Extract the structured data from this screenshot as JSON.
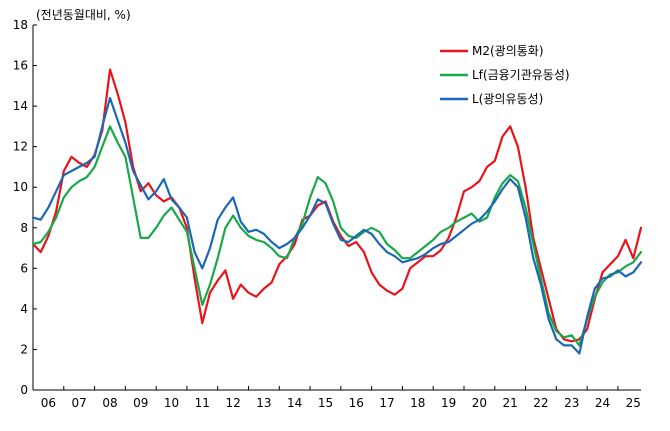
{
  "chart_data": {
    "type": "line",
    "title": "",
    "unit_label": "(전년동월대비, %)",
    "xlabel": "",
    "ylabel": "",
    "ylim": [
      0,
      18
    ],
    "yticks": [
      0,
      2,
      4,
      6,
      8,
      10,
      12,
      14,
      16,
      18
    ],
    "xlim": [
      2006.0,
      2025.75
    ],
    "xticks": [
      {
        "label": "06",
        "value": 2006.5
      },
      {
        "label": "07",
        "value": 2007.5
      },
      {
        "label": "08",
        "value": 2008.5
      },
      {
        "label": "09",
        "value": 2009.5
      },
      {
        "label": "10",
        "value": 2010.5
      },
      {
        "label": "11",
        "value": 2011.5
      },
      {
        "label": "12",
        "value": 2012.5
      },
      {
        "label": "13",
        "value": 2013.5
      },
      {
        "label": "14",
        "value": 2014.5
      },
      {
        "label": "15",
        "value": 2015.5
      },
      {
        "label": "16",
        "value": 2016.5
      },
      {
        "label": "17",
        "value": 2017.5
      },
      {
        "label": "18",
        "value": 2018.5
      },
      {
        "label": "19",
        "value": 2019.5
      },
      {
        "label": "20",
        "value": 2020.5
      },
      {
        "label": "21",
        "value": 2021.5
      },
      {
        "label": "22",
        "value": 2022.5
      },
      {
        "label": "23",
        "value": 2023.5
      },
      {
        "label": "24",
        "value": 2024.5
      },
      {
        "label": "25",
        "value": 2025.5
      }
    ],
    "legend_position": "top-right",
    "grid": false,
    "series": [
      {
        "name": "M2(광의통화)",
        "color": "#e8141c",
        "x": [
          2006.0,
          2006.25,
          2006.5,
          2006.75,
          2007.0,
          2007.25,
          2007.5,
          2007.75,
          2008.0,
          2008.25,
          2008.5,
          2008.75,
          2009.0,
          2009.25,
          2009.5,
          2009.75,
          2010.0,
          2010.25,
          2010.5,
          2010.75,
          2011.0,
          2011.25,
          2011.5,
          2011.75,
          2012.0,
          2012.25,
          2012.5,
          2012.75,
          2013.0,
          2013.25,
          2013.5,
          2013.75,
          2014.0,
          2014.25,
          2014.5,
          2014.75,
          2015.0,
          2015.25,
          2015.5,
          2015.75,
          2016.0,
          2016.25,
          2016.5,
          2016.75,
          2017.0,
          2017.25,
          2017.5,
          2017.75,
          2018.0,
          2018.25,
          2018.5,
          2018.75,
          2019.0,
          2019.25,
          2019.5,
          2019.75,
          2020.0,
          2020.25,
          2020.5,
          2020.75,
          2021.0,
          2021.25,
          2021.5,
          2021.75,
          2022.0,
          2022.25,
          2022.5,
          2022.75,
          2023.0,
          2023.25,
          2023.5,
          2023.75,
          2024.0,
          2024.25,
          2024.5,
          2024.75,
          2025.0,
          2025.25,
          2025.5,
          2025.75
        ],
        "values": [
          7.2,
          6.8,
          7.6,
          8.8,
          10.8,
          11.5,
          11.2,
          11.0,
          11.6,
          12.8,
          15.8,
          14.6,
          13.2,
          11.0,
          9.8,
          10.2,
          9.6,
          9.3,
          9.5,
          9.0,
          8.0,
          5.5,
          3.3,
          4.8,
          5.4,
          5.9,
          4.5,
          5.2,
          4.8,
          4.6,
          5.0,
          5.3,
          6.2,
          6.6,
          7.2,
          8.4,
          8.6,
          9.1,
          9.3,
          8.3,
          7.6,
          7.1,
          7.3,
          6.8,
          5.8,
          5.2,
          4.9,
          4.7,
          5.0,
          6.0,
          6.3,
          6.6,
          6.6,
          6.9,
          7.5,
          8.5,
          9.8,
          10.0,
          10.3,
          11.0,
          11.3,
          12.5,
          13.0,
          12.0,
          10.0,
          7.5,
          6.0,
          4.5,
          3.0,
          2.5,
          2.4,
          2.5,
          3.0,
          4.5,
          5.8,
          6.2,
          6.6,
          7.4,
          6.5,
          8.0
        ]
      },
      {
        "name": "Lf(금융기관유동성)",
        "color": "#1aa84a",
        "x": [
          2006.0,
          2006.25,
          2006.5,
          2006.75,
          2007.0,
          2007.25,
          2007.5,
          2007.75,
          2008.0,
          2008.25,
          2008.5,
          2008.75,
          2009.0,
          2009.25,
          2009.5,
          2009.75,
          2010.0,
          2010.25,
          2010.5,
          2010.75,
          2011.0,
          2011.25,
          2011.5,
          2011.75,
          2012.0,
          2012.25,
          2012.5,
          2012.75,
          2013.0,
          2013.25,
          2013.5,
          2013.75,
          2014.0,
          2014.25,
          2014.5,
          2014.75,
          2015.0,
          2015.25,
          2015.5,
          2015.75,
          2016.0,
          2016.25,
          2016.5,
          2016.75,
          2017.0,
          2017.25,
          2017.5,
          2017.75,
          2018.0,
          2018.25,
          2018.5,
          2018.75,
          2019.0,
          2019.25,
          2019.5,
          2019.75,
          2020.0,
          2020.25,
          2020.5,
          2020.75,
          2021.0,
          2021.25,
          2021.5,
          2021.75,
          2022.0,
          2022.25,
          2022.5,
          2022.75,
          2023.0,
          2023.25,
          2023.5,
          2023.75,
          2024.0,
          2024.25,
          2024.5,
          2024.75,
          2025.0,
          2025.25,
          2025.5,
          2025.75
        ],
        "values": [
          7.2,
          7.3,
          7.8,
          8.5,
          9.5,
          10.0,
          10.3,
          10.5,
          11.0,
          12.0,
          13.0,
          12.2,
          11.5,
          9.5,
          7.5,
          7.5,
          8.0,
          8.6,
          9.0,
          8.4,
          7.8,
          6.0,
          4.2,
          5.2,
          6.5,
          8.0,
          8.6,
          8.0,
          7.6,
          7.4,
          7.3,
          7.0,
          6.6,
          6.5,
          7.5,
          8.2,
          9.5,
          10.5,
          10.2,
          9.3,
          8.0,
          7.6,
          7.5,
          7.8,
          8.0,
          7.8,
          7.2,
          6.9,
          6.5,
          6.5,
          6.8,
          7.1,
          7.4,
          7.8,
          8.0,
          8.3,
          8.5,
          8.7,
          8.3,
          8.5,
          9.5,
          10.2,
          10.6,
          10.3,
          9.0,
          7.2,
          5.5,
          3.8,
          2.9,
          2.6,
          2.7,
          2.2,
          3.5,
          4.6,
          5.3,
          5.7,
          5.8,
          6.1,
          6.3,
          6.8
        ]
      },
      {
        "name": "L(광의유동성)",
        "color": "#1c68b4",
        "x": [
          2006.0,
          2006.25,
          2006.5,
          2006.75,
          2007.0,
          2007.25,
          2007.5,
          2007.75,
          2008.0,
          2008.25,
          2008.5,
          2008.75,
          2009.0,
          2009.25,
          2009.5,
          2009.75,
          2010.0,
          2010.25,
          2010.5,
          2010.75,
          2011.0,
          2011.25,
          2011.5,
          2011.75,
          2012.0,
          2012.25,
          2012.5,
          2012.75,
          2013.0,
          2013.25,
          2013.5,
          2013.75,
          2014.0,
          2014.25,
          2014.5,
          2014.75,
          2015.0,
          2015.25,
          2015.5,
          2015.75,
          2016.0,
          2016.25,
          2016.5,
          2016.75,
          2017.0,
          2017.25,
          2017.5,
          2017.75,
          2018.0,
          2018.25,
          2018.5,
          2018.75,
          2019.0,
          2019.25,
          2019.5,
          2019.75,
          2020.0,
          2020.25,
          2020.5,
          2020.75,
          2021.0,
          2021.25,
          2021.5,
          2021.75,
          2022.0,
          2022.25,
          2022.5,
          2022.75,
          2023.0,
          2023.25,
          2023.5,
          2023.75,
          2024.0,
          2024.25,
          2024.5,
          2024.75,
          2025.0,
          2025.25,
          2025.5,
          2025.75
        ],
        "values": [
          8.5,
          8.4,
          9.0,
          9.8,
          10.6,
          10.8,
          11.0,
          11.2,
          11.5,
          13.0,
          14.4,
          13.3,
          12.2,
          10.8,
          10.1,
          9.4,
          9.8,
          10.4,
          9.4,
          9.0,
          8.5,
          6.8,
          6.0,
          7.0,
          8.4,
          9.0,
          9.5,
          8.3,
          7.8,
          7.9,
          7.7,
          7.3,
          7.0,
          7.2,
          7.5,
          8.0,
          8.6,
          9.4,
          9.2,
          8.2,
          7.4,
          7.3,
          7.6,
          7.9,
          7.7,
          7.2,
          6.8,
          6.6,
          6.3,
          6.4,
          6.5,
          6.7,
          7.0,
          7.2,
          7.3,
          7.6,
          7.9,
          8.2,
          8.4,
          8.8,
          9.3,
          9.9,
          10.4,
          10.0,
          8.5,
          6.5,
          5.2,
          3.5,
          2.5,
          2.2,
          2.2,
          1.8,
          3.6,
          5.0,
          5.5,
          5.6,
          5.9,
          5.6,
          5.8,
          6.3
        ]
      }
    ]
  }
}
